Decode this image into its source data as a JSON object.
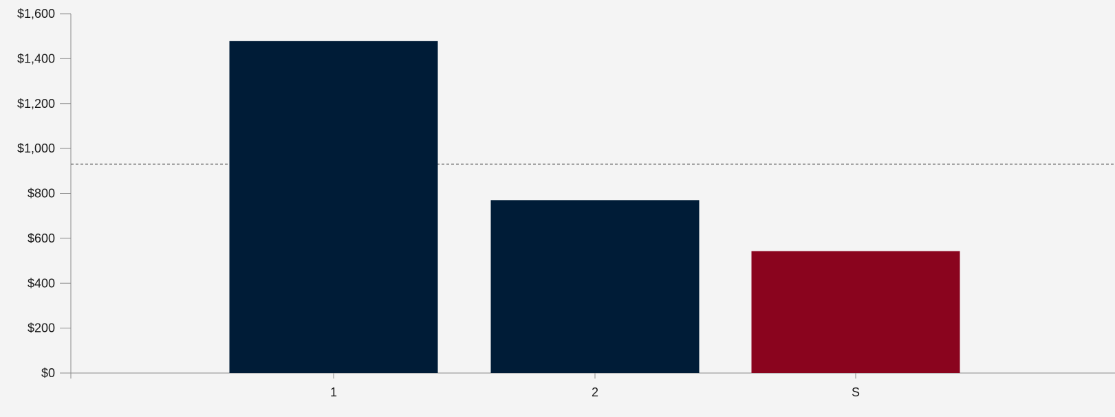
{
  "chart_data": {
    "type": "bar",
    "categories": [
      "1",
      "2",
      "S"
    ],
    "values": [
      1478,
      770,
      543
    ],
    "bar_colors": [
      "#001c37",
      "#001c37",
      "#8a041e"
    ],
    "ylim": [
      0,
      1600
    ],
    "y_ticks": [
      0,
      200,
      400,
      600,
      800,
      1000,
      1200,
      1400,
      1600
    ],
    "y_tick_labels": [
      "$0",
      "$200",
      "$400",
      "$600",
      "$800",
      "$1,000",
      "$1,200",
      "$1,400",
      "$1,600"
    ],
    "reference_line": {
      "value": 930,
      "style": "dashed",
      "color": "#555555"
    },
    "title": "",
    "xlabel": "",
    "ylabel": "",
    "grid": false,
    "background_color": "#f4f4f4",
    "axis_color": "#8c8c8c"
  }
}
